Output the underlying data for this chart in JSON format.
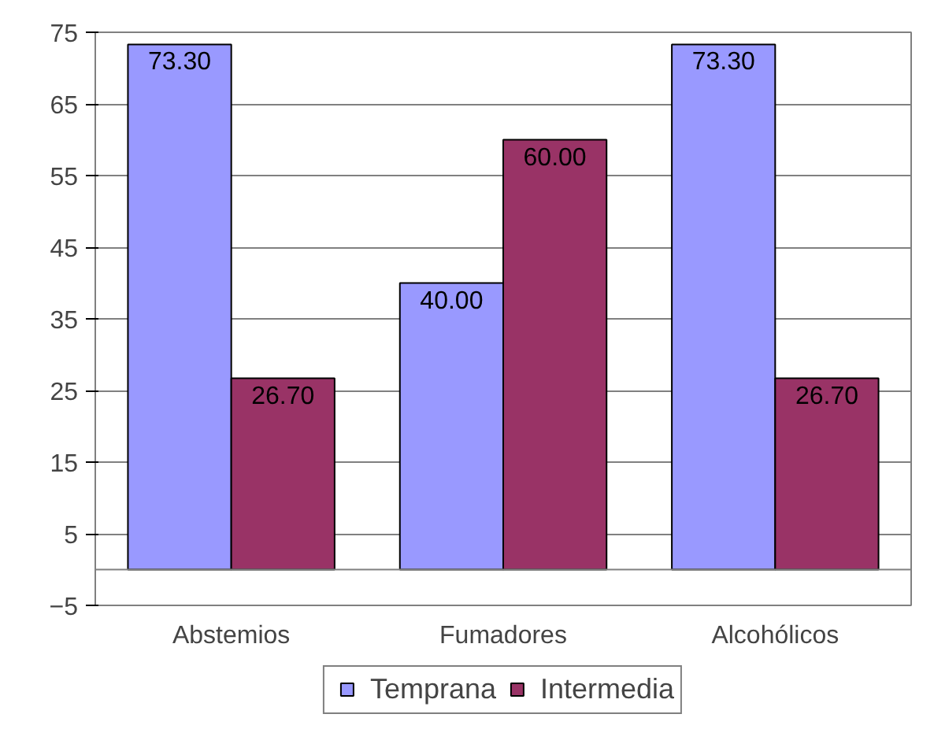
{
  "chart_data": {
    "type": "bar",
    "categories": [
      "Abstemios",
      "Fumadores",
      "Alcohólicos"
    ],
    "series": [
      {
        "name": "Temprana",
        "color": "#9999ff",
        "values": [
          73.3,
          40.0,
          73.3
        ]
      },
      {
        "name": "Intermedia",
        "color": "#993366",
        "values": [
          26.7,
          60.0,
          26.7
        ]
      }
    ],
    "value_labels": [
      [
        "73.30",
        "40.00",
        "73.30"
      ],
      [
        "26.70",
        "60.00",
        "26.70"
      ]
    ],
    "ylim": [
      -5,
      75
    ],
    "yticks": [
      -5,
      5,
      15,
      25,
      35,
      45,
      55,
      65,
      75
    ],
    "grid": "y",
    "legend": "bottom"
  }
}
